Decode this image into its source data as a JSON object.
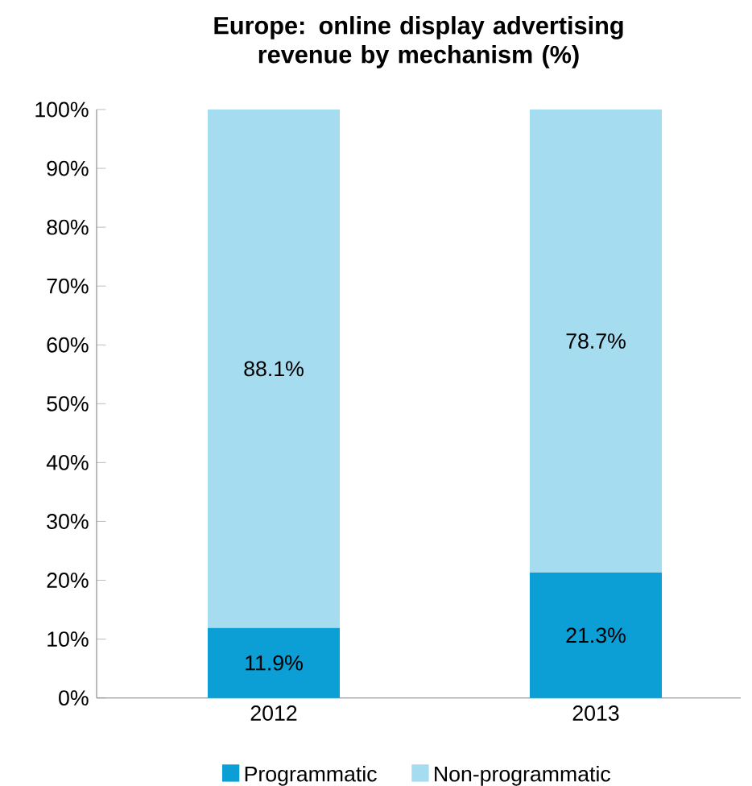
{
  "chart_data": {
    "type": "bar",
    "title": "Europe: online display advertising revenue by mechanism (%)",
    "categories": [
      "2012",
      "2013"
    ],
    "stacked": true,
    "series": [
      {
        "name": "Programmatic",
        "color": "#0b9fd6",
        "values": [
          11.9,
          21.3
        ],
        "value_labels": [
          "11.9%",
          "21.3%"
        ]
      },
      {
        "name": "Non-programmatic",
        "color": "#a5dcef",
        "values": [
          88.1,
          78.7
        ],
        "value_labels": [
          "88.1%",
          "78.7%"
        ]
      }
    ],
    "ylim": [
      0,
      100
    ],
    "yticks": [
      {
        "value": 0,
        "label": "0%"
      },
      {
        "value": 10,
        "label": "10%"
      },
      {
        "value": 20,
        "label": "20%"
      },
      {
        "value": 30,
        "label": "30%"
      },
      {
        "value": 40,
        "label": "40%"
      },
      {
        "value": 50,
        "label": "50%"
      },
      {
        "value": 60,
        "label": "60%"
      },
      {
        "value": 70,
        "label": "70%"
      },
      {
        "value": 80,
        "label": "80%"
      },
      {
        "value": 90,
        "label": "90%"
      },
      {
        "value": 100,
        "label": "100%"
      }
    ],
    "legend": "bottom"
  }
}
